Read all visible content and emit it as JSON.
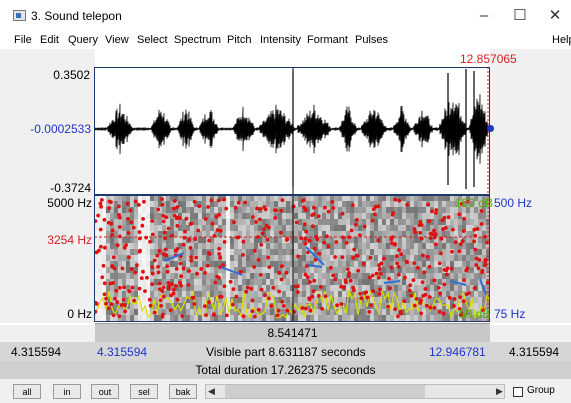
{
  "window": {
    "title": "3. Sound telepon",
    "minimize_icon": "minimize-icon",
    "maximize_icon": "maximize-icon",
    "close_icon": "close-icon"
  },
  "menu": {
    "items": [
      "File",
      "Edit",
      "Query",
      "View",
      "Select",
      "Spectrum",
      "Pitch",
      "Intensity",
      "Formant",
      "Pulses"
    ],
    "help": "Help"
  },
  "waveform": {
    "y_max": "0.3502",
    "y_mid": "-0.0002533",
    "y_min": "-0.3724",
    "cursor_time": "12.857065"
  },
  "spectrogram": {
    "freq_max": "5000 Hz",
    "freq_cursor": "3254 Hz",
    "freq_min": "0 Hz",
    "intensity_top": "100 dB",
    "pitch_top": "500 Hz",
    "intensity_bottom": "50 dB",
    "pitch_bottom": "75 Hz"
  },
  "timebar": {
    "selection_duration": "8.541471"
  },
  "visible_row": {
    "left_value": "4.315594",
    "start": "4.315594",
    "label": "Visible part 8.631187 seconds",
    "end": "12.946781",
    "right_value": "4.315594"
  },
  "total_row": {
    "label": "Total duration 17.262375 seconds"
  },
  "buttons": {
    "all": "all",
    "in": "in",
    "out": "out",
    "sel": "sel",
    "bak": "bak",
    "group": "Group"
  },
  "colors": {
    "cursor": "#d42020",
    "axis_blue": "#1f35c8",
    "formant": "#e01010",
    "pitch": "#2e6fd8",
    "intensity": "#c8d600"
  }
}
